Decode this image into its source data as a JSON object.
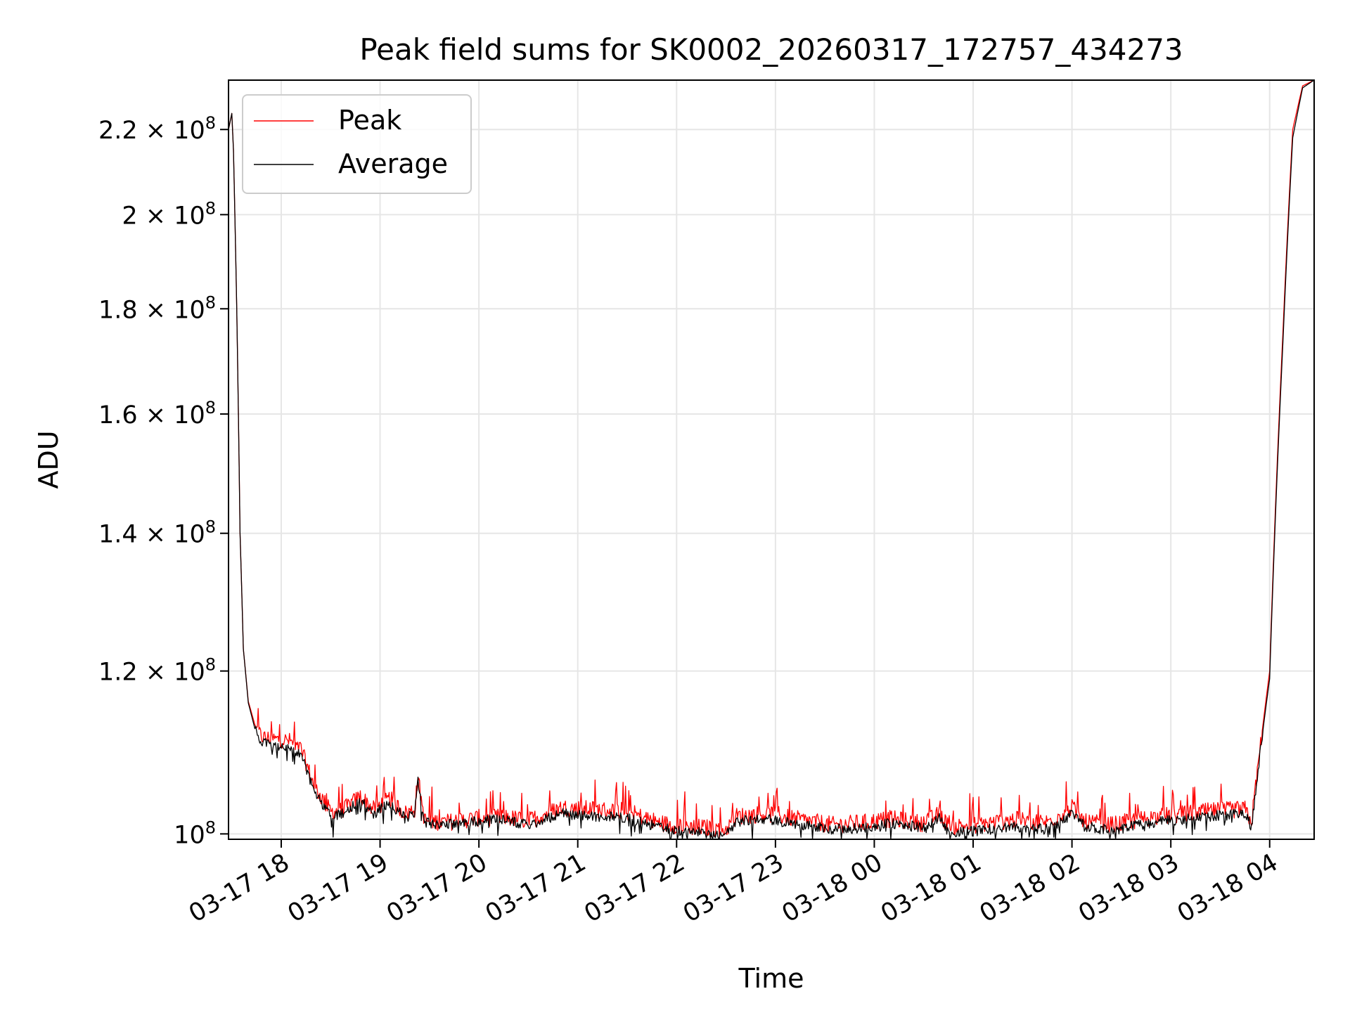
{
  "chart_data": {
    "type": "line",
    "title": "Peak field sums for SK0002_20260317_172757_434273",
    "xlabel": "Time",
    "ylabel": "ADU",
    "yscale": "log",
    "grid": true,
    "legend_position": "top-left",
    "xlim": [
      "2026-03-17 17:28",
      "2026-03-18 04:27"
    ],
    "ylim": [
      99400000,
      232500000
    ],
    "x_ticks": [
      {
        "value": "2026-03-17 18:00",
        "label": "03-17 18"
      },
      {
        "value": "2026-03-17 19:00",
        "label": "03-17 19"
      },
      {
        "value": "2026-03-17 20:00",
        "label": "03-17 20"
      },
      {
        "value": "2026-03-17 21:00",
        "label": "03-17 21"
      },
      {
        "value": "2026-03-17 22:00",
        "label": "03-17 22"
      },
      {
        "value": "2026-03-17 23:00",
        "label": "03-17 23"
      },
      {
        "value": "2026-03-18 00:00",
        "label": "03-18 00"
      },
      {
        "value": "2026-03-18 01:00",
        "label": "03-18 01"
      },
      {
        "value": "2026-03-18 02:00",
        "label": "03-18 02"
      },
      {
        "value": "2026-03-18 03:00",
        "label": "03-18 03"
      },
      {
        "value": "2026-03-18 04:00",
        "label": "03-18 04"
      }
    ],
    "y_ticks": [
      {
        "value": 100000000,
        "mantissa": "",
        "exponent": "8"
      },
      {
        "value": 120000000,
        "mantissa": "1.2",
        "exponent": "8"
      },
      {
        "value": 140000000,
        "mantissa": "1.4",
        "exponent": "8"
      },
      {
        "value": 160000000,
        "mantissa": "1.6",
        "exponent": "8"
      },
      {
        "value": 180000000,
        "mantissa": "1.8",
        "exponent": "8"
      },
      {
        "value": 200000000,
        "mantissa": "2",
        "exponent": "8"
      },
      {
        "value": 220000000,
        "mantissa": "2.2",
        "exponent": "8"
      }
    ],
    "series": [
      {
        "name": "Peak",
        "color": "#ff0000",
        "noise_amplitude": 2000000,
        "points": [
          [
            "2026-03-17 17:28",
            220000000
          ],
          [
            "2026-03-17 17:30",
            224000000
          ],
          [
            "2026-03-17 17:31",
            215000000
          ],
          [
            "2026-03-17 17:33",
            180000000
          ],
          [
            "2026-03-17 17:35",
            140000000
          ],
          [
            "2026-03-17 17:37",
            123000000
          ],
          [
            "2026-03-17 17:40",
            116000000
          ],
          [
            "2026-03-17 17:44",
            113000000
          ],
          [
            "2026-03-17 17:48",
            111500000
          ],
          [
            "2026-03-17 17:55",
            111200000
          ],
          [
            "2026-03-17 18:05",
            111000000
          ],
          [
            "2026-03-17 18:12",
            110000000
          ],
          [
            "2026-03-17 18:20",
            105500000
          ],
          [
            "2026-03-17 18:30",
            102500000
          ],
          [
            "2026-03-17 18:38",
            102800000
          ],
          [
            "2026-03-17 18:48",
            104300000
          ],
          [
            "2026-03-17 18:56",
            102800000
          ],
          [
            "2026-03-17 19:06",
            104000000
          ],
          [
            "2026-03-17 19:15",
            102300000
          ],
          [
            "2026-03-17 19:21",
            102800000
          ],
          [
            "2026-03-17 19:23",
            106500000
          ],
          [
            "2026-03-17 19:27",
            101500000
          ],
          [
            "2026-03-17 19:40",
            101300000
          ],
          [
            "2026-03-17 20:00",
            101800000
          ],
          [
            "2026-03-17 20:15",
            101900000
          ],
          [
            "2026-03-17 20:30",
            101500000
          ],
          [
            "2026-03-17 20:50",
            103000000
          ],
          [
            "2026-03-17 21:10",
            102800000
          ],
          [
            "2026-03-17 21:30",
            102500000
          ],
          [
            "2026-03-17 21:50",
            101200000
          ],
          [
            "2026-03-17 22:10",
            100800000
          ],
          [
            "2026-03-17 22:30",
            100500000
          ],
          [
            "2026-03-17 22:36",
            102000000
          ],
          [
            "2026-03-17 22:55",
            102300000
          ],
          [
            "2026-03-17 23:15",
            101600000
          ],
          [
            "2026-03-17 23:35",
            101000000
          ],
          [
            "2026-03-17 23:55",
            101300000
          ],
          [
            "2026-03-18 00:10",
            101700000
          ],
          [
            "2026-03-18 00:30",
            101200000
          ],
          [
            "2026-03-18 00:40",
            102300000
          ],
          [
            "2026-03-18 00:45",
            100800000
          ],
          [
            "2026-03-18 01:00",
            101000000
          ],
          [
            "2026-03-18 01:25",
            101600000
          ],
          [
            "2026-03-18 01:45",
            101300000
          ],
          [
            "2026-03-18 02:00",
            103000000
          ],
          [
            "2026-03-18 02:08",
            101300000
          ],
          [
            "2026-03-18 02:25",
            101000000
          ],
          [
            "2026-03-18 02:45",
            101800000
          ],
          [
            "2026-03-18 03:05",
            102200000
          ],
          [
            "2026-03-18 03:25",
            102600000
          ],
          [
            "2026-03-18 03:45",
            102800000
          ],
          [
            "2026-03-18 03:49",
            101300000
          ],
          [
            "2026-03-18 03:53",
            108000000
          ],
          [
            "2026-03-18 04:00",
            120000000
          ],
          [
            "2026-03-18 04:08",
            175000000
          ],
          [
            "2026-03-18 04:14",
            220000000
          ],
          [
            "2026-03-18 04:20",
            231000000
          ],
          [
            "2026-03-18 04:27",
            232500000
          ]
        ]
      },
      {
        "name": "Average",
        "color": "#000000",
        "noise_amplitude": 1200000,
        "points": [
          [
            "2026-03-17 17:28",
            220000000
          ],
          [
            "2026-03-17 17:30",
            224000000
          ],
          [
            "2026-03-17 17:31",
            215000000
          ],
          [
            "2026-03-17 17:33",
            180000000
          ],
          [
            "2026-03-17 17:35",
            140000000
          ],
          [
            "2026-03-17 17:37",
            123000000
          ],
          [
            "2026-03-17 17:40",
            115800000
          ],
          [
            "2026-03-17 17:44",
            112500000
          ],
          [
            "2026-03-17 17:48",
            110800000
          ],
          [
            "2026-03-17 17:55",
            110500000
          ],
          [
            "2026-03-17 18:05",
            110200000
          ],
          [
            "2026-03-17 18:12",
            109200000
          ],
          [
            "2026-03-17 18:20",
            104800000
          ],
          [
            "2026-03-17 18:30",
            102000000
          ],
          [
            "2026-03-17 18:38",
            102300000
          ],
          [
            "2026-03-17 18:48",
            103800000
          ],
          [
            "2026-03-17 18:56",
            102300000
          ],
          [
            "2026-03-17 19:06",
            103500000
          ],
          [
            "2026-03-17 19:15",
            101800000
          ],
          [
            "2026-03-17 19:21",
            102300000
          ],
          [
            "2026-03-17 19:23",
            106000000
          ],
          [
            "2026-03-17 19:27",
            101300000
          ],
          [
            "2026-03-17 19:40",
            101000000
          ],
          [
            "2026-03-17 20:00",
            101500000
          ],
          [
            "2026-03-17 20:15",
            101600000
          ],
          [
            "2026-03-17 20:30",
            101000000
          ],
          [
            "2026-03-17 20:50",
            102300000
          ],
          [
            "2026-03-17 21:10",
            102000000
          ],
          [
            "2026-03-17 21:30",
            101800000
          ],
          [
            "2026-03-17 21:50",
            100700000
          ],
          [
            "2026-03-17 22:10",
            100200000
          ],
          [
            "2026-03-17 22:30",
            99900000
          ],
          [
            "2026-03-17 22:36",
            101400000
          ],
          [
            "2026-03-17 22:55",
            101700000
          ],
          [
            "2026-03-17 23:15",
            101000000
          ],
          [
            "2026-03-17 23:35",
            100500000
          ],
          [
            "2026-03-17 23:55",
            100700000
          ],
          [
            "2026-03-18 00:10",
            101200000
          ],
          [
            "2026-03-18 00:30",
            100700000
          ],
          [
            "2026-03-18 00:40",
            101800000
          ],
          [
            "2026-03-18 00:45",
            100200000
          ],
          [
            "2026-03-18 01:00",
            100300000
          ],
          [
            "2026-03-18 01:25",
            100800000
          ],
          [
            "2026-03-18 01:45",
            100500000
          ],
          [
            "2026-03-18 02:00",
            102200000
          ],
          [
            "2026-03-18 02:08",
            100800000
          ],
          [
            "2026-03-18 02:25",
            100400000
          ],
          [
            "2026-03-18 02:45",
            101200000
          ],
          [
            "2026-03-18 03:05",
            101600000
          ],
          [
            "2026-03-18 03:25",
            102000000
          ],
          [
            "2026-03-18 03:45",
            102300000
          ],
          [
            "2026-03-18 03:49",
            100700000
          ],
          [
            "2026-03-18 03:53",
            107500000
          ],
          [
            "2026-03-18 04:00",
            119000000
          ],
          [
            "2026-03-18 04:08",
            173000000
          ],
          [
            "2026-03-18 04:14",
            218000000
          ],
          [
            "2026-03-18 04:20",
            230500000
          ],
          [
            "2026-03-18 04:27",
            232500000
          ]
        ]
      }
    ]
  }
}
